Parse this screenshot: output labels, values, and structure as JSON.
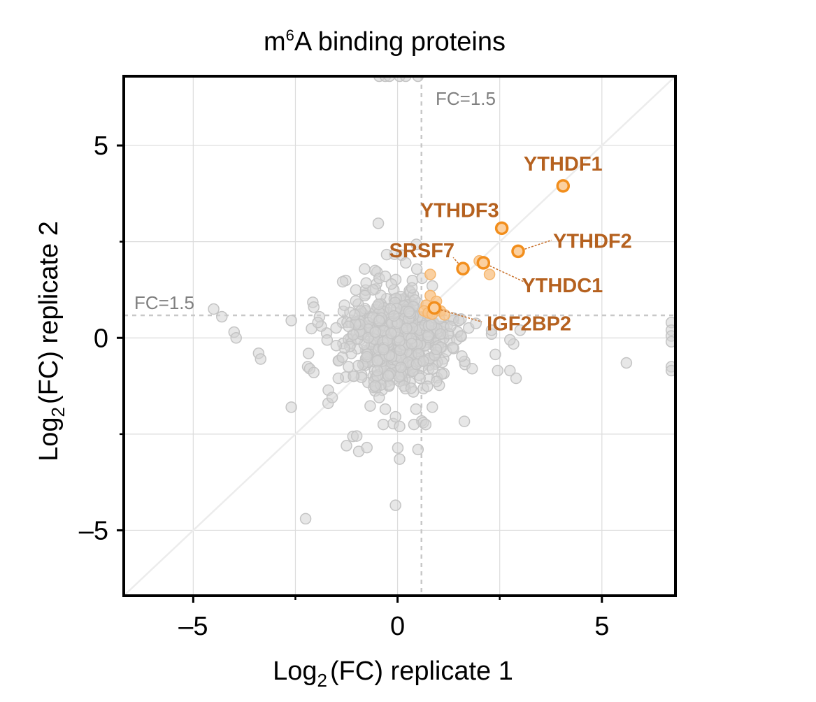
{
  "chart_data": {
    "type": "scatter",
    "title_pre": "m",
    "title_sup": "6",
    "title_post": "A binding proteins",
    "xlabel": {
      "pre": "Log",
      "sub": "2",
      "post": "(FC) replicate 1"
    },
    "ylabel": {
      "pre": "Log",
      "sub": "2",
      "post": "(FC) replicate 2"
    },
    "xlim": [
      -6.7,
      6.8
    ],
    "ylim": [
      -6.7,
      6.8
    ],
    "xticks": [
      -5,
      0,
      5
    ],
    "yticks": [
      -5,
      0,
      5
    ],
    "xtick_labels": [
      "–5",
      "0",
      "5"
    ],
    "ytick_labels": [
      "–5",
      "0",
      "5"
    ],
    "grid": true,
    "diagonal": true,
    "threshold": {
      "value": 0.585,
      "label": "FC=1.5"
    },
    "colors": {
      "background_points": "#d3d3d3",
      "highlight": "#f28e1c",
      "highlight_light": "#f9c48a",
      "label": "#b5611f",
      "threshold_line": "#c8c8c8"
    },
    "highlighted": [
      {
        "name": "YTHDF1",
        "x": 4.05,
        "y": 3.95
      },
      {
        "name": "YTHDF3",
        "x": 2.55,
        "y": 2.85
      },
      {
        "name": "YTHDF2",
        "x": 2.95,
        "y": 2.25
      },
      {
        "name": "SRSF7",
        "x": 1.6,
        "y": 1.8
      },
      {
        "name": "YTHDC1",
        "x": 2.1,
        "y": 1.95
      },
      {
        "name": "IGF2BP2",
        "x": 0.9,
        "y": 0.78
      }
    ],
    "light_highlighted": [
      [
        0.8,
        1.65
      ],
      [
        0.8,
        1.1
      ],
      [
        0.95,
        0.95
      ],
      [
        0.7,
        0.85
      ],
      [
        0.65,
        0.7
      ],
      [
        0.75,
        0.65
      ],
      [
        0.85,
        0.62
      ],
      [
        1.05,
        0.7
      ],
      [
        1.15,
        0.6
      ],
      [
        2.0,
        2.0
      ],
      [
        2.25,
        1.65
      ],
      [
        0.95,
        0.75
      ]
    ],
    "gray_points": [
      [
        -0.45,
        6.8
      ],
      [
        -0.3,
        6.8
      ],
      [
        -0.2,
        6.8
      ],
      [
        0.05,
        6.8
      ],
      [
        0.2,
        6.8
      ],
      [
        0.5,
        6.8
      ],
      [
        6.7,
        0.4
      ],
      [
        6.7,
        0.2
      ],
      [
        6.7,
        0.05
      ],
      [
        6.7,
        -0.1
      ],
      [
        6.7,
        -0.75
      ],
      [
        6.7,
        -0.85
      ],
      [
        5.6,
        -0.65
      ],
      [
        3.0,
        0.2
      ],
      [
        2.75,
        -0.05
      ],
      [
        2.3,
        0.1
      ],
      [
        2.45,
        -0.85
      ],
      [
        2.75,
        -0.85
      ],
      [
        2.9,
        -1.05
      ],
      [
        2.3,
        0.2
      ],
      [
        1.55,
        0.05
      ],
      [
        1.35,
        -0.25
      ],
      [
        -4.5,
        0.75
      ],
      [
        -4.3,
        0.55
      ],
      [
        -4.0,
        0.15
      ],
      [
        -3.95,
        0.0
      ],
      [
        -3.4,
        -0.4
      ],
      [
        -3.35,
        -0.55
      ],
      [
        -2.6,
        -1.8
      ],
      [
        -2.6,
        0.45
      ],
      [
        -2.2,
        -0.75
      ],
      [
        -2.15,
        -0.8
      ],
      [
        -2.05,
        -0.9
      ],
      [
        -2.05,
        0.8
      ],
      [
        -2.25,
        -4.7
      ],
      [
        -1.95,
        0.4
      ],
      [
        -1.5,
        -0.2
      ],
      [
        -1.3,
        0.85
      ],
      [
        -1.7,
        -1.7
      ],
      [
        -1.6,
        -1.55
      ],
      [
        -1.45,
        -1.05
      ],
      [
        -1.25,
        -2.8
      ],
      [
        -1.0,
        -2.55
      ],
      [
        -0.95,
        -2.95
      ],
      [
        -0.75,
        -2.85
      ],
      [
        -0.55,
        -1.25
      ],
      [
        -0.45,
        -1.55
      ],
      [
        -0.35,
        -2.25
      ],
      [
        -0.3,
        -1.85
      ],
      [
        -0.05,
        -2.05
      ],
      [
        0.05,
        -3.15
      ],
      [
        0.05,
        -2.3
      ],
      [
        0.4,
        -2.25
      ],
      [
        0.45,
        -1.85
      ],
      [
        0.5,
        -2.9
      ],
      [
        0.85,
        -1.8
      ],
      [
        0.55,
        -1.05
      ],
      [
        -0.05,
        -4.35
      ],
      [
        -0.55,
        1.75
      ],
      [
        -0.45,
        1.55
      ],
      [
        -0.3,
        1.6
      ],
      [
        -0.15,
        1.4
      ],
      [
        0.1,
        2.15
      ],
      [
        0.2,
        1.95
      ],
      [
        0.35,
        1.3
      ],
      [
        -0.6,
        1.25
      ],
      [
        -0.9,
        0.7
      ],
      [
        -1.05,
        0.6
      ],
      [
        -1.2,
        0.3
      ],
      [
        -1.35,
        -0.5
      ],
      [
        -1.2,
        -0.75
      ],
      [
        0.95,
        -0.3
      ],
      [
        1.05,
        0.1
      ],
      [
        1.3,
        0.3
      ],
      [
        1.5,
        0.45
      ],
      [
        -0.8,
        1.1
      ],
      [
        0.6,
        1.55
      ],
      [
        0.85,
        1.35
      ]
    ],
    "cloud": {
      "count": 650,
      "sx": 0.55,
      "sy": 0.55,
      "sx_tail": 0.9,
      "sy_tail": 0.9,
      "cx": 0.0,
      "cy": 0.0,
      "seed": 7
    }
  }
}
